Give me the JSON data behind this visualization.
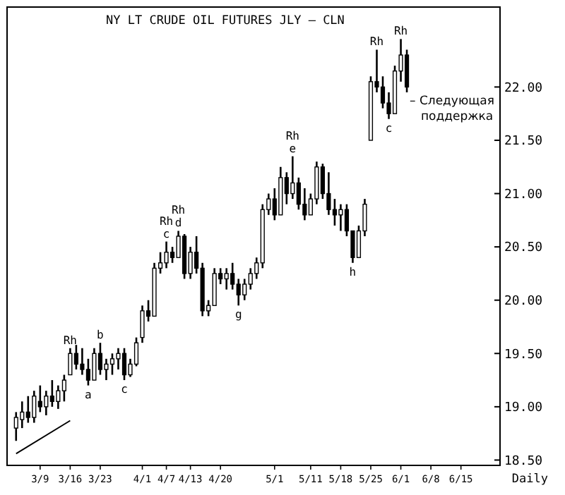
{
  "chart_data": {
    "type": "candlestick",
    "title": "NY LT CRUDE OIL FUTURES JLY — CLN",
    "xlabel": "Daily",
    "categories": [
      null,
      null,
      null,
      null,
      null,
      "3/9",
      null,
      null,
      null,
      null,
      "3/16",
      null,
      null,
      null,
      null,
      "3/23",
      null,
      null,
      null,
      null,
      null,
      null,
      "4/1",
      null,
      null,
      null,
      "4/7",
      null,
      null,
      null,
      "4/13",
      null,
      null,
      null,
      null,
      "4/20",
      null,
      null,
      null,
      null,
      null,
      null,
      null,
      null,
      "5/1",
      null,
      null,
      null,
      null,
      null,
      "5/11",
      null,
      null,
      null,
      null,
      "5/18",
      null,
      null,
      null,
      null,
      "5/25",
      null,
      null,
      null,
      null,
      "6/1",
      null,
      null,
      null,
      null,
      "6/8",
      null,
      null,
      null,
      null,
      "6/15",
      null,
      null,
      null,
      null,
      null,
      null
    ],
    "ohlc": [
      null,
      [
        18.8,
        18.95,
        18.68,
        18.9
      ],
      [
        18.88,
        19.05,
        18.8,
        18.95
      ],
      [
        18.95,
        19.1,
        18.85,
        18.9
      ],
      [
        18.9,
        19.15,
        18.85,
        19.1
      ],
      [
        19.05,
        19.2,
        18.95,
        19.0
      ],
      [
        19.0,
        19.15,
        18.92,
        19.1
      ],
      [
        19.1,
        19.25,
        19.0,
        19.05
      ],
      [
        19.05,
        19.2,
        18.98,
        19.15
      ],
      [
        19.15,
        19.3,
        19.05,
        19.25
      ],
      [
        19.3,
        19.55,
        19.3,
        19.5
      ],
      [
        19.5,
        19.58,
        19.35,
        19.4
      ],
      [
        19.4,
        19.55,
        19.3,
        19.35
      ],
      [
        19.35,
        19.45,
        19.2,
        19.25
      ],
      [
        19.25,
        19.55,
        19.25,
        19.5
      ],
      [
        19.5,
        19.6,
        19.3,
        19.35
      ],
      [
        19.35,
        19.45,
        19.25,
        19.4
      ],
      [
        19.4,
        19.5,
        19.3,
        19.45
      ],
      [
        19.45,
        19.55,
        19.35,
        19.5
      ],
      [
        19.5,
        19.55,
        19.25,
        19.3
      ],
      [
        19.3,
        19.45,
        19.28,
        19.4
      ],
      [
        19.4,
        19.65,
        19.38,
        19.6
      ],
      [
        19.65,
        19.95,
        19.6,
        19.9
      ],
      [
        19.9,
        20.0,
        19.8,
        19.85
      ],
      [
        19.85,
        20.35,
        19.85,
        20.3
      ],
      [
        20.3,
        20.45,
        20.25,
        20.35
      ],
      [
        20.35,
        20.55,
        20.3,
        20.45
      ],
      [
        20.45,
        20.5,
        20.35,
        20.4
      ],
      [
        20.4,
        20.65,
        20.4,
        20.6
      ],
      [
        20.6,
        20.62,
        20.2,
        20.25
      ],
      [
        20.25,
        20.5,
        20.2,
        20.45
      ],
      [
        20.45,
        20.6,
        20.25,
        20.3
      ],
      [
        20.3,
        20.35,
        19.85,
        19.9
      ],
      [
        19.9,
        20.0,
        19.85,
        19.95
      ],
      [
        19.95,
        20.3,
        19.95,
        20.25
      ],
      [
        20.25,
        20.3,
        20.15,
        20.2
      ],
      [
        20.2,
        20.3,
        20.1,
        20.25
      ],
      [
        20.25,
        20.35,
        20.1,
        20.15
      ],
      [
        20.15,
        20.2,
        19.95,
        20.05
      ],
      [
        20.05,
        20.2,
        20.0,
        20.15
      ],
      [
        20.15,
        20.3,
        20.1,
        20.25
      ],
      [
        20.25,
        20.4,
        20.2,
        20.35
      ],
      [
        20.35,
        20.9,
        20.3,
        20.85
      ],
      [
        20.85,
        21.0,
        20.8,
        20.95
      ],
      [
        20.95,
        21.05,
        20.75,
        20.8
      ],
      [
        20.8,
        21.25,
        20.8,
        21.15
      ],
      [
        21.15,
        21.2,
        20.9,
        21.0
      ],
      [
        21.0,
        21.35,
        20.95,
        21.1
      ],
      [
        21.1,
        21.15,
        20.85,
        20.9
      ],
      [
        20.9,
        21.05,
        20.75,
        20.8
      ],
      [
        20.8,
        21.0,
        20.8,
        20.95
      ],
      [
        20.95,
        21.3,
        20.9,
        21.25
      ],
      [
        21.25,
        21.28,
        20.95,
        21.0
      ],
      [
        21.0,
        21.2,
        20.8,
        20.85
      ],
      [
        20.85,
        20.95,
        20.7,
        20.8
      ],
      [
        20.8,
        20.9,
        20.65,
        20.85
      ],
      [
        20.85,
        20.9,
        20.6,
        20.65
      ],
      [
        20.65,
        20.65,
        20.35,
        20.4
      ],
      [
        20.4,
        20.7,
        20.4,
        20.65
      ],
      [
        20.65,
        20.95,
        20.6,
        20.9
      ],
      [
        21.5,
        22.1,
        21.5,
        22.05
      ],
      [
        22.05,
        22.35,
        21.95,
        22.0
      ],
      [
        22.0,
        22.1,
        21.8,
        21.85
      ],
      [
        21.85,
        21.95,
        21.7,
        21.75
      ],
      [
        21.75,
        22.2,
        21.75,
        22.15
      ],
      [
        22.15,
        22.45,
        22.05,
        22.3
      ],
      [
        22.3,
        22.35,
        21.95,
        22.0
      ],
      null,
      null,
      null,
      null,
      null,
      null,
      null,
      null,
      null,
      null,
      null,
      null,
      null,
      null,
      null
    ],
    "value_labels": [
      null,
      null,
      null,
      null,
      null,
      null,
      null,
      null,
      null,
      null,
      "Rh",
      null,
      null,
      "a",
      null,
      "b",
      null,
      null,
      null,
      "c",
      null,
      null,
      null,
      null,
      null,
      null,
      "Rh c",
      null,
      "Rh d",
      null,
      null,
      null,
      null,
      null,
      null,
      null,
      null,
      null,
      "g",
      null,
      null,
      null,
      null,
      null,
      null,
      null,
      null,
      "Rh e",
      null,
      null,
      null,
      null,
      null,
      null,
      null,
      null,
      null,
      "h",
      null,
      null,
      null,
      "Rh",
      null,
      "c",
      null,
      "Rh",
      null,
      null,
      null,
      null,
      null,
      null,
      null,
      null,
      null,
      null,
      null,
      null,
      null,
      null,
      null,
      null
    ],
    "series": [
      {
        "type": "line",
        "color": "#000000",
        "values": [
          null,
          18.56,
          null,
          null,
          null,
          null,
          null,
          null,
          null,
          null,
          18.87,
          null,
          null,
          null,
          null,
          null,
          null,
          null,
          null,
          null,
          null,
          null,
          null,
          null,
          null,
          null,
          null,
          null,
          null,
          null,
          null,
          null,
          null,
          null,
          null,
          null,
          null,
          null,
          null,
          null,
          null,
          null,
          null,
          null,
          null,
          null,
          null,
          null,
          null,
          null,
          null,
          null,
          null,
          null,
          null,
          null,
          null,
          null,
          null,
          null,
          null,
          null,
          null,
          null,
          null,
          null,
          null,
          null,
          null,
          null,
          null,
          null,
          null,
          null,
          null,
          null,
          null,
          null,
          null,
          null,
          null,
          null
        ]
      }
    ],
    "ylim": [
      18.45,
      22.75
    ],
    "yticks": [
      {
        "value": 18.5,
        "label": "18.50"
      },
      {
        "value": 19,
        "label": "19.00"
      },
      {
        "value": 19.5,
        "label": "19.50"
      },
      {
        "value": 20,
        "label": "20.00"
      },
      {
        "value": 20.5,
        "label": "20.50"
      },
      {
        "value": 21,
        "label": "21.00"
      },
      {
        "value": 21.5,
        "label": "21.50"
      },
      {
        "value": 22,
        "label": "22.00"
      }
    ],
    "annotations": [
      "– Следующая поддержка"
    ]
  }
}
